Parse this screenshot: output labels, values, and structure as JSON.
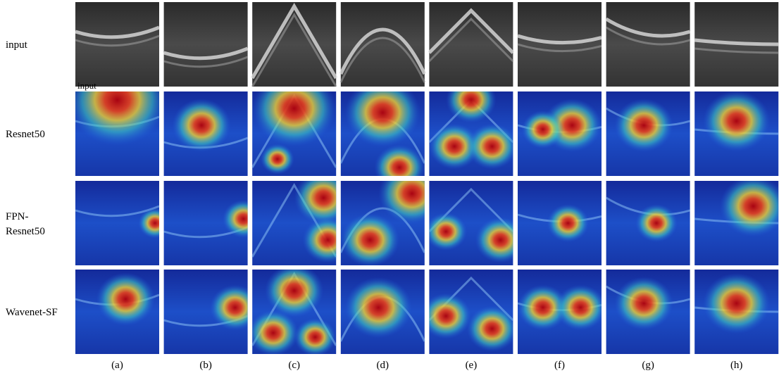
{
  "rows": [
    {
      "label": [
        "input"
      ]
    },
    {
      "label": [
        "Resnet50"
      ]
    },
    {
      "label": [
        "FPN-",
        "Resnet50"
      ]
    },
    {
      "label": [
        "Wavenet-SF"
      ]
    }
  ],
  "columns": [
    "(a)",
    "(b)",
    "(c)",
    "(d)",
    "(e)",
    "(f)",
    "(g)",
    "(h)"
  ],
  "overlay_text": "input"
}
